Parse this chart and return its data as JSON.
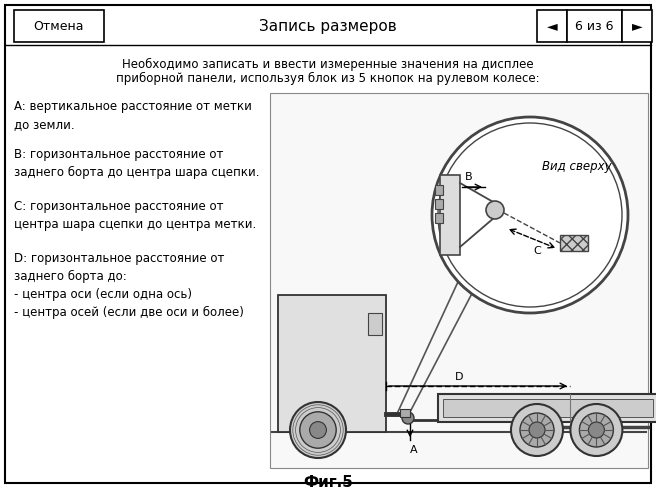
{
  "bg_color": "#ffffff",
  "title": "Фиг.5",
  "header_title": "Запись размеров",
  "header_cancel": "Отмена",
  "header_nav": "6 из 6",
  "instruction_line1": "Необходимо записать и ввести измеренные значения на дисплее",
  "instruction_line2": "приборной панели, используя блок из 5 кнопок на рулевом колесе:",
  "label_A": "A: вертикальное расстояние от метки\nдо земли.",
  "label_B": "B: горизонтальное расстояние от\nзаднего борта до центра шара сцепки.",
  "label_C": "C: горизонтальное расстояние от\nцентра шара сцепки до центра метки.",
  "label_D": "D: горизонтальное расстояние от\nзаднего борта до:\n- центра оси (если одна ось)\n- центра осей (если две оси и более)",
  "view_label": "Вид сверху"
}
